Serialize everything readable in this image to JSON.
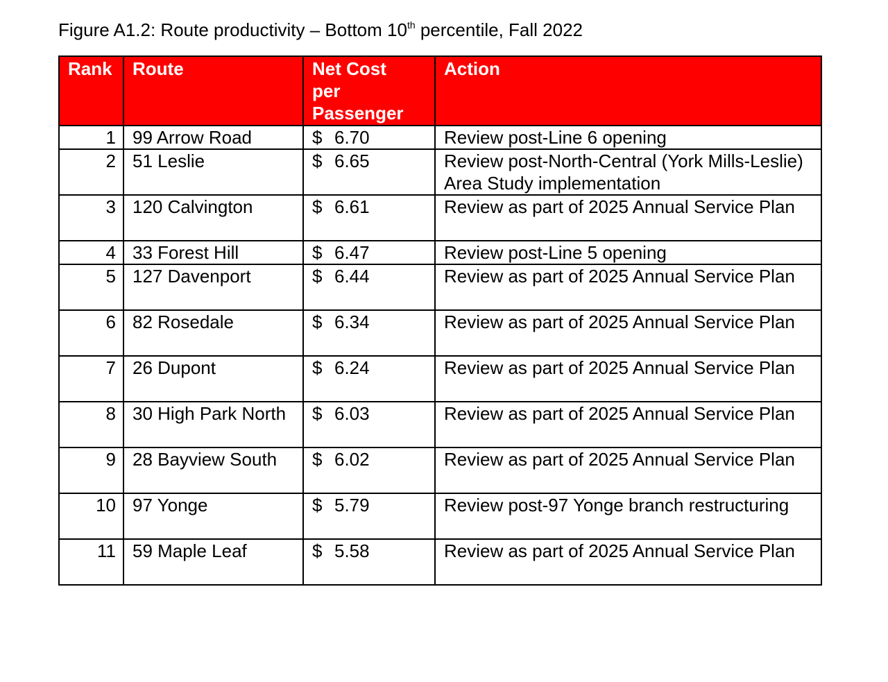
{
  "caption": {
    "prefix": "Figure A1.2: Route productivity – Bottom 10",
    "superscript": "th",
    "suffix": " percentile, Fall 2022"
  },
  "table": {
    "headers": {
      "rank": "Rank",
      "route": "Route",
      "cost_line1": "Net Cost",
      "cost_line2": "per",
      "cost_line3": "Passenger",
      "action": "Action"
    },
    "header_color": "#fe0000",
    "currency": "$",
    "rows": [
      {
        "rank": "1",
        "route": "99 Arrow Road",
        "cost": "6.70",
        "action": "Review post-Line 6 opening"
      },
      {
        "rank": "2",
        "route": "51 Leslie",
        "cost": "6.65",
        "action": "Review post-North-Central (York Mills-Leslie) Area Study implementation"
      },
      {
        "rank": "3",
        "route": "120 Calvington",
        "cost": "6.61",
        "action": "Review as part of 2025 Annual Service Plan"
      },
      {
        "rank": "4",
        "route": "33 Forest Hill",
        "cost": "6.47",
        "action": "Review post-Line 5 opening"
      },
      {
        "rank": "5",
        "route": "127 Davenport",
        "cost": "6.44",
        "action": "Review as part of 2025 Annual Service Plan"
      },
      {
        "rank": "6",
        "route": "82 Rosedale",
        "cost": "6.34",
        "action": "Review as part of 2025 Annual Service Plan"
      },
      {
        "rank": "7",
        "route": "26 Dupont",
        "cost": "6.24",
        "action": "Review as part of 2025 Annual Service Plan"
      },
      {
        "rank": "8",
        "route": "30 High Park North",
        "cost": "6.03",
        "action": "Review as part of 2025 Annual Service Plan"
      },
      {
        "rank": "9",
        "route": "28 Bayview South",
        "cost": "6.02",
        "action": "Review as part of 2025 Annual Service Plan"
      },
      {
        "rank": "10",
        "route": "97 Yonge",
        "cost": "5.79",
        "action": "Review post-97 Yonge branch restructuring"
      },
      {
        "rank": "11",
        "route": "59 Maple Leaf",
        "cost": "5.58",
        "action": "Review as part of 2025 Annual Service Plan"
      }
    ]
  }
}
